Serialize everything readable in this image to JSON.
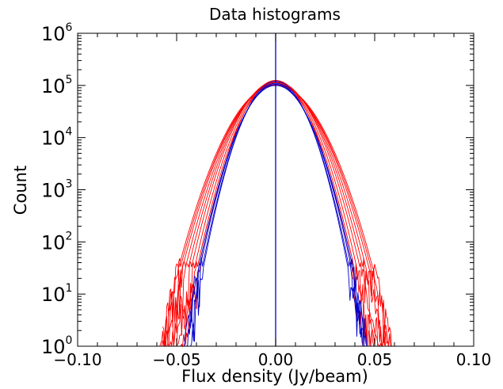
{
  "chart_data": {
    "type": "line",
    "title": "Data histograms",
    "xlabel": "Flux density (Jy/beam)",
    "ylabel": "Count",
    "xlim": [
      -0.1,
      0.1
    ],
    "ylim": [
      1,
      1000000
    ],
    "yscale": "log",
    "xticks": [
      -0.1,
      -0.05,
      0.0,
      0.05,
      0.1
    ],
    "xtick_labels": [
      "−0.10",
      "−0.05",
      "0.00",
      "0.05",
      "0.10"
    ],
    "yticks": [
      1,
      10,
      100,
      1000,
      10000,
      100000,
      1000000
    ],
    "ytick_base": "10",
    "ytick_exponents": [
      "0",
      "1",
      "2",
      "3",
      "4",
      "5",
      "6"
    ],
    "grid": false,
    "legend": "none",
    "colors": {
      "red": "#ff0000",
      "blue": "#0000cc",
      "axes": "#000000"
    },
    "series": [
      {
        "color": "red",
        "peak": 100000,
        "sigma": 0.012,
        "min": -0.063,
        "max": 0.065
      },
      {
        "color": "red",
        "peak": 105000,
        "sigma": 0.0117,
        "min": -0.061,
        "max": 0.061
      },
      {
        "color": "red",
        "peak": 110000,
        "sigma": 0.0113,
        "min": -0.06,
        "max": 0.059
      },
      {
        "color": "red",
        "peak": 115000,
        "sigma": 0.0109,
        "min": -0.058,
        "max": 0.057
      },
      {
        "color": "red",
        "peak": 120000,
        "sigma": 0.0105,
        "min": -0.056,
        "max": 0.056
      },
      {
        "color": "red",
        "peak": 118000,
        "sigma": 0.0101,
        "min": -0.054,
        "max": 0.054
      },
      {
        "color": "red",
        "peak": 112000,
        "sigma": 0.0098,
        "min": -0.052,
        "max": 0.053
      },
      {
        "color": "red",
        "peak": 125000,
        "sigma": 0.0094,
        "min": -0.051,
        "max": 0.05
      },
      {
        "color": "red",
        "peak": 102000,
        "sigma": 0.0122,
        "min": -0.057,
        "max": 0.072
      },
      {
        "color": "blue",
        "peak": 100000,
        "sigma": 0.0097,
        "min": -0.046,
        "max": 0.046
      },
      {
        "color": "blue",
        "peak": 105000,
        "sigma": 0.0095,
        "min": -0.045,
        "max": 0.046
      },
      {
        "color": "blue",
        "peak": 110000,
        "sigma": 0.0092,
        "min": -0.044,
        "max": 0.045
      },
      {
        "color": "blue",
        "peak": 120000,
        "sigma": 0.009,
        "min": -0.043,
        "max": 0.044
      }
    ],
    "annotations": [
      {
        "type": "vertical-line",
        "x": 0.0,
        "color": "blue"
      }
    ]
  }
}
